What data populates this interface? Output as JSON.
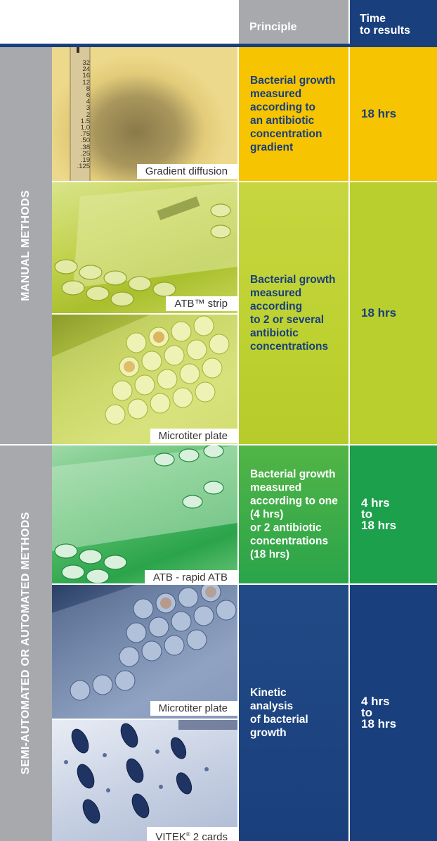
{
  "header": {
    "principle": "Principle",
    "time_line1": "Time",
    "time_line2": "to results"
  },
  "categories": {
    "manual": "MANUAL METHODS",
    "semi": "SEMI-AUTOMATED OR AUTOMATED METHODS"
  },
  "ruler_labels": [
    "32",
    "24",
    "16",
    "12",
    "8",
    "6",
    "4",
    "3",
    "2",
    "1.5",
    "1.0",
    ".75",
    ".50",
    ".38",
    ".25",
    ".19",
    ".125"
  ],
  "captions": {
    "gradient": "Gradient diffusion",
    "atb_strip": "ATB™ strip",
    "microtiter1": "Microtiter plate",
    "atb_rapid": "ATB - rapid ATB",
    "microtiter2": "Microtiter plate",
    "vitek": "VITEK",
    "vitek_sup": "®",
    "vitek_rest": " 2 cards"
  },
  "rows": [
    {
      "principle": [
        "Bacterial growth",
        "measured",
        "according to",
        "an antibiotic",
        "concentration",
        "gradient"
      ],
      "time": [
        "18 hrs"
      ]
    },
    {
      "principle": [
        "Bacterial growth",
        "measured",
        "according",
        "to 2 or several",
        "antibiotic",
        "concentrations"
      ],
      "time": [
        "18 hrs"
      ]
    },
    {
      "principle": [
        "Bacterial growth",
        "measured",
        "according to one",
        "(4 hrs)",
        "or 2 antibiotic",
        "concentrations",
        "(18 hrs)"
      ],
      "time": [
        "4 hrs",
        "to",
        "18 hrs"
      ]
    },
    {
      "principle": [
        "Kinetic",
        "analysis",
        "of bacterial",
        "growth"
      ],
      "time": [
        "4 hrs",
        "to",
        "18 hrs"
      ]
    }
  ],
  "colors": {
    "navy": "#1a3f7d",
    "gray": "#a7a9ac",
    "yellow": "#f6c400",
    "lime": "#b9cf2e",
    "green": "#1da04b"
  }
}
